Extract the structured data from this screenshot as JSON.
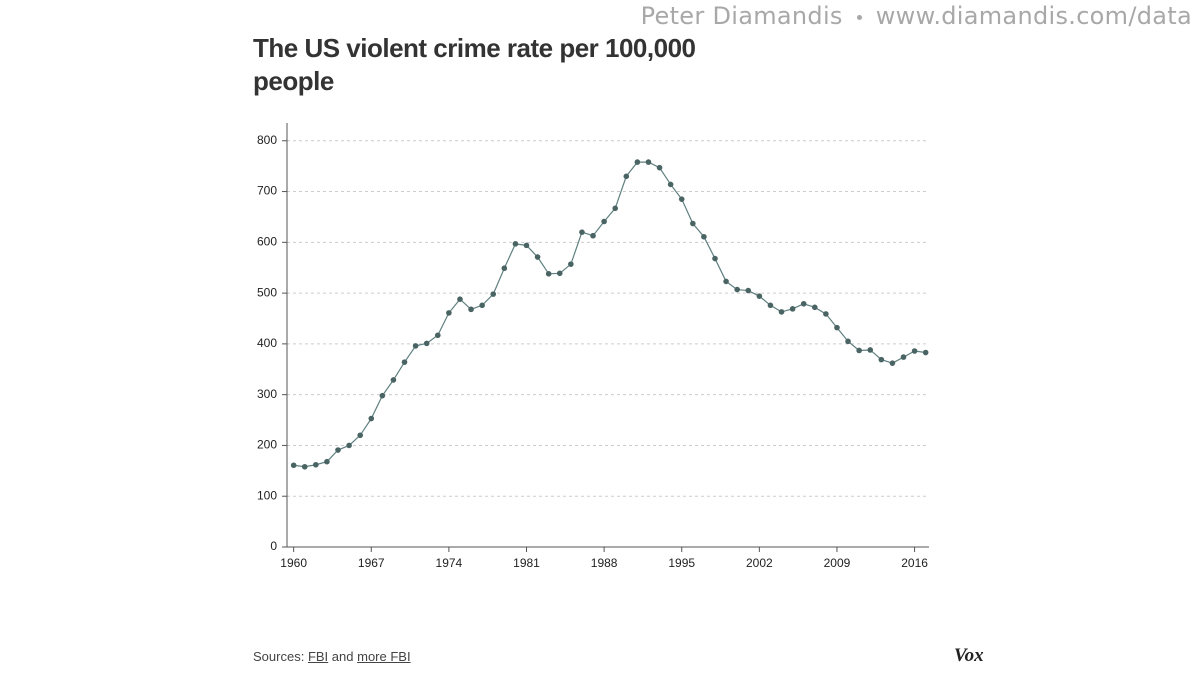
{
  "header": {
    "author": "Peter Diamandis",
    "url": "www.diamandis.com/data"
  },
  "chart_data": {
    "type": "line",
    "title": "The US violent crime rate per 100,000 people",
    "x": [
      1960,
      1961,
      1962,
      1963,
      1964,
      1965,
      1966,
      1967,
      1968,
      1969,
      1970,
      1971,
      1972,
      1973,
      1974,
      1975,
      1976,
      1977,
      1978,
      1979,
      1980,
      1981,
      1982,
      1983,
      1984,
      1985,
      1986,
      1987,
      1988,
      1989,
      1990,
      1991,
      1992,
      1993,
      1994,
      1995,
      1996,
      1997,
      1998,
      1999,
      2000,
      2001,
      2002,
      2003,
      2004,
      2005,
      2006,
      2007,
      2008,
      2009,
      2010,
      2011,
      2012,
      2013,
      2014,
      2015,
      2016,
      2017
    ],
    "series": [
      {
        "color": "#5f7f7f",
        "values": [
          161,
          158,
          162,
          168,
          191,
          200,
          220,
          253,
          298,
          329,
          364,
          396,
          401,
          417,
          461,
          488,
          468,
          476,
          498,
          549,
          597,
          594,
          571,
          538,
          539,
          557,
          620,
          613,
          641,
          667,
          730,
          758,
          758,
          747,
          714,
          685,
          637,
          611,
          568,
          523,
          507,
          505,
          494,
          476,
          463,
          469,
          479,
          472,
          459,
          432,
          405,
          387,
          388,
          369,
          362,
          374,
          386,
          383
        ]
      }
    ],
    "xlim": [
      1959.4,
      2017.3
    ],
    "xticks": [
      1960,
      1967,
      1974,
      1981,
      1988,
      1995,
      2002,
      2009,
      2016
    ],
    "ylim": [
      0,
      835
    ],
    "yticks": [
      0,
      100,
      200,
      300,
      400,
      500,
      600,
      700,
      800
    ],
    "grid": true
  },
  "footer": {
    "sources_label": "Sources:",
    "link1": "FBI",
    "and": "and",
    "link2": "more FBI",
    "logo": "Vox"
  }
}
